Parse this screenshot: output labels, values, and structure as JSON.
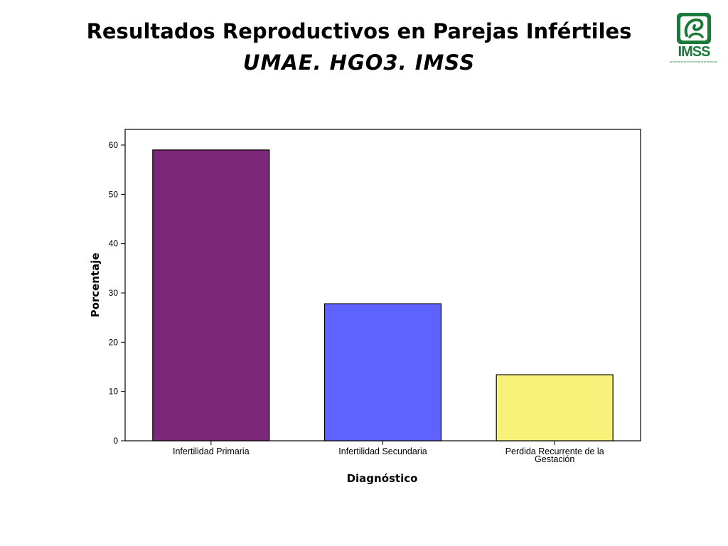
{
  "slide": {
    "title": "Resultados Reproductivos en Parejas Infértiles",
    "subtitle": "UMAE. HGO3. IMSS",
    "logo_text": "IMSS"
  },
  "chart_data": {
    "type": "bar",
    "xlabel": "Diagnóstico",
    "ylabel": "Porcentaje",
    "ylim": [
      0,
      60
    ],
    "yticks": [
      0,
      10,
      20,
      30,
      40,
      50,
      60
    ],
    "grid": false,
    "legend": "none",
    "categories": [
      {
        "label_lines": [
          "Infertilidad Primaria"
        ],
        "value": 59,
        "color": "#7b2878"
      },
      {
        "label_lines": [
          "Infertilidad Secundaria"
        ],
        "value": 27.8,
        "color": "#5e62ff"
      },
      {
        "label_lines": [
          "Perdida Recurrente de la",
          "Gestación"
        ],
        "value": 13.4,
        "color": "#f8f27a"
      }
    ]
  }
}
